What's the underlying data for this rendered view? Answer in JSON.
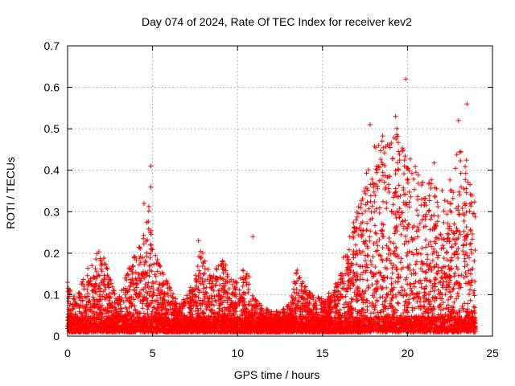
{
  "chart_data": {
    "type": "scatter",
    "title": "Day 074 of 2024, Rate Of TEC Index for receiver kev2",
    "xlabel": "GPS time / hours",
    "ylabel": "ROTI / TECUs",
    "xlim": [
      0,
      25
    ],
    "ylim": [
      0,
      0.7
    ],
    "xticks": [
      0,
      5,
      10,
      15,
      20,
      25
    ],
    "yticks": [
      0,
      0.1,
      0.2,
      0.3,
      0.4,
      0.5,
      0.6,
      0.7
    ],
    "xtick_labels": [
      "0",
      "5",
      "10",
      "15",
      "20",
      "25"
    ],
    "ytick_labels": [
      "0",
      "0.1",
      "0.2",
      "0.3",
      "0.4",
      "0.5",
      "0.6",
      "0.7"
    ],
    "grid": true,
    "marker": "+",
    "color": "#ff0000",
    "envelope": [
      [
        0.0,
        0.13
      ],
      [
        0.5,
        0.09
      ],
      [
        1.0,
        0.15
      ],
      [
        1.5,
        0.19
      ],
      [
        2.0,
        0.21
      ],
      [
        2.5,
        0.14
      ],
      [
        3.0,
        0.09
      ],
      [
        3.5,
        0.16
      ],
      [
        4.0,
        0.2
      ],
      [
        4.5,
        0.25
      ],
      [
        4.8,
        0.32
      ],
      [
        5.0,
        0.22
      ],
      [
        5.5,
        0.17
      ],
      [
        6.0,
        0.12
      ],
      [
        6.5,
        0.08
      ],
      [
        7.0,
        0.1
      ],
      [
        7.5,
        0.14
      ],
      [
        7.8,
        0.23
      ],
      [
        8.5,
        0.14
      ],
      [
        9.0,
        0.19
      ],
      [
        9.5,
        0.16
      ],
      [
        10.0,
        0.13
      ],
      [
        10.5,
        0.18
      ],
      [
        11.0,
        0.09
      ],
      [
        11.5,
        0.07
      ],
      [
        12.0,
        0.06
      ],
      [
        12.5,
        0.06
      ],
      [
        13.0,
        0.08
      ],
      [
        13.5,
        0.16
      ],
      [
        14.0,
        0.12
      ],
      [
        14.5,
        0.1
      ],
      [
        15.0,
        0.09
      ],
      [
        15.5,
        0.11
      ],
      [
        16.0,
        0.16
      ],
      [
        16.5,
        0.23
      ],
      [
        17.0,
        0.3
      ],
      [
        17.5,
        0.38
      ],
      [
        18.0,
        0.46
      ],
      [
        18.5,
        0.49
      ],
      [
        19.0,
        0.47
      ],
      [
        19.5,
        0.52
      ],
      [
        20.0,
        0.44
      ],
      [
        20.5,
        0.42
      ],
      [
        21.0,
        0.36
      ],
      [
        21.5,
        0.43
      ],
      [
        22.0,
        0.35
      ],
      [
        22.5,
        0.38
      ],
      [
        23.0,
        0.47
      ],
      [
        23.5,
        0.43
      ],
      [
        24.0,
        0.32
      ]
    ],
    "notable_points": [
      {
        "x": 19.9,
        "y": 0.62
      },
      {
        "x": 23.5,
        "y": 0.56
      },
      {
        "x": 19.3,
        "y": 0.53
      },
      {
        "x": 23.0,
        "y": 0.52
      },
      {
        "x": 17.8,
        "y": 0.51
      },
      {
        "x": 4.9,
        "y": 0.41
      },
      {
        "x": 4.9,
        "y": 0.36
      },
      {
        "x": 4.5,
        "y": 0.32
      },
      {
        "x": 10.9,
        "y": 0.24
      },
      {
        "x": 7.7,
        "y": 0.23
      },
      {
        "x": 0.0,
        "y": 0.13
      }
    ]
  }
}
